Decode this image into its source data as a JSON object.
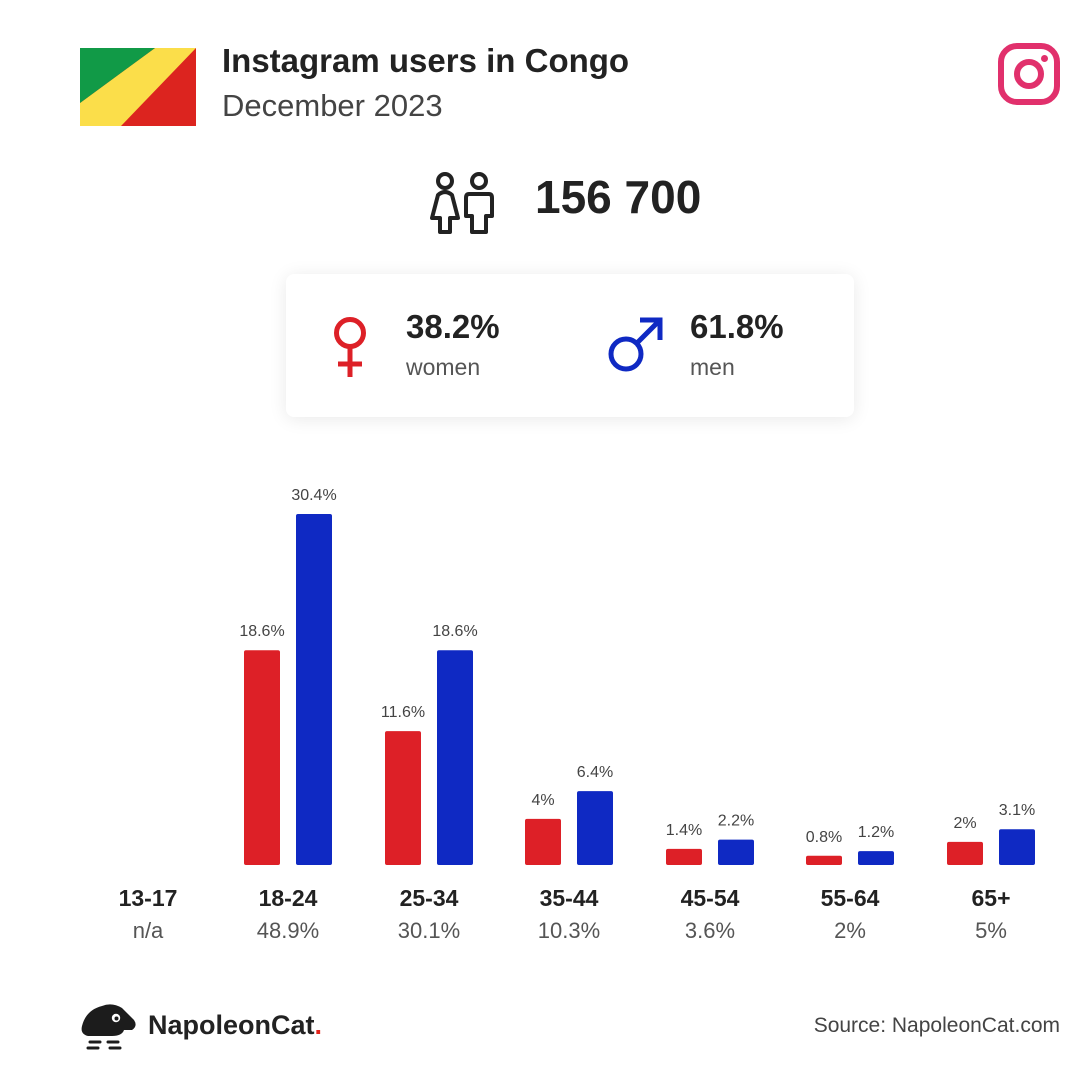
{
  "header": {
    "title": "Instagram users in Congo",
    "subtitle": "December 2023",
    "flag_colors": {
      "green": "#119a47",
      "yellow": "#fbde4a",
      "red": "#dc241f"
    },
    "platform_icon": "instagram-icon",
    "platform_color": "#e1306c"
  },
  "total_users": "156 700",
  "gender": {
    "women": {
      "percent": "38.2%",
      "label": "women",
      "color": "#dd2027",
      "icon": "venus-icon"
    },
    "men": {
      "percent": "61.8%",
      "label": "men",
      "color": "#0f29c3",
      "icon": "mars-icon"
    }
  },
  "chart_data": {
    "type": "bar",
    "categories": [
      "13-17",
      "18-24",
      "25-34",
      "35-44",
      "45-54",
      "55-64",
      "65+"
    ],
    "category_totals": [
      "n/a",
      "48.9%",
      "30.1%",
      "10.3%",
      "3.6%",
      "2%",
      "5%"
    ],
    "series": [
      {
        "name": "women",
        "color": "#dd2027",
        "values": [
          null,
          18.6,
          11.6,
          4,
          1.4,
          0.8,
          2
        ],
        "labels": [
          "",
          "18.6%",
          "11.6%",
          "4%",
          "1.4%",
          "0.8%",
          "2%"
        ]
      },
      {
        "name": "men",
        "color": "#0f29c3",
        "values": [
          null,
          30.4,
          18.6,
          6.4,
          2.2,
          1.2,
          3.1
        ],
        "labels": [
          "",
          "30.4%",
          "18.6%",
          "6.4%",
          "2.2%",
          "1.2%",
          "3.1%"
        ]
      }
    ],
    "ylim": [
      0,
      30.4
    ],
    "grid": false
  },
  "footer": {
    "brand_name": "NapoleonCat",
    "brand_dot": ".",
    "brand_icon": "napoleoncat-logo-icon",
    "source": "Source: NapoleonCat.com"
  }
}
